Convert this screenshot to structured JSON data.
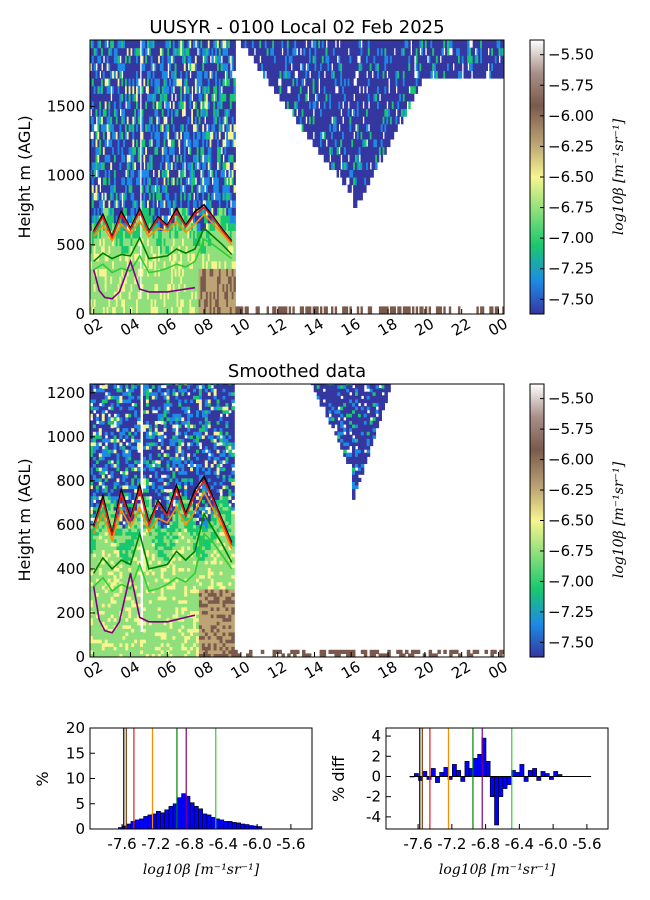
{
  "chart_data": [
    {
      "type": "heatmap",
      "title": "UUSYR - 0100 Local 02 Feb 2025",
      "ylabel": "Height m (AGL)",
      "ylim": [
        0,
        1980
      ],
      "yticks": [
        "0",
        "500",
        "1000",
        "1500"
      ],
      "yticks_values": [
        0,
        500,
        1000,
        1500
      ],
      "xticks": [
        "02",
        "04",
        "06",
        "08",
        "10",
        "12",
        "14",
        "16",
        "18",
        "20",
        "22",
        "00"
      ],
      "xlim_hours": [
        1.8,
        24.3
      ],
      "colorbar": {
        "label": "log10β [m⁻¹sr⁻¹]",
        "ticks": [
          "-5.50",
          "-5.75",
          "-6.00",
          "-6.25",
          "-6.50",
          "-6.75",
          "-7.00",
          "-7.25",
          "-7.50"
        ],
        "range": [
          -7.62,
          -5.38
        ],
        "colormap": [
          "#3537a0",
          "#1d8ae6",
          "#19c86e",
          "#8fe07c",
          "#f7f58f",
          "#bca474",
          "#7a5a4c",
          "#a89088",
          "#ffffff"
        ]
      },
      "layer_lines": [
        {
          "color": "#000000",
          "x": [
            2.0,
            2.5,
            3.0,
            3.5,
            4.0,
            4.5,
            5.0,
            5.5,
            6.0,
            6.5,
            7.0,
            7.5,
            8.0,
            8.5,
            9.0,
            9.5
          ],
          "y": [
            600,
            720,
            560,
            740,
            620,
            760,
            600,
            700,
            640,
            760,
            640,
            740,
            790,
            700,
            610,
            530
          ]
        },
        {
          "color": "#e41a1c",
          "x": [
            2.0,
            2.5,
            3.0,
            3.5,
            4.0,
            4.5,
            5.0,
            5.5,
            6.0,
            6.5,
            7.0,
            7.5,
            8.0,
            8.5,
            9.0,
            9.5
          ],
          "y": [
            590,
            700,
            550,
            720,
            610,
            740,
            590,
            690,
            630,
            740,
            630,
            720,
            770,
            690,
            600,
            520
          ]
        },
        {
          "color": "#ff8c00",
          "x": [
            2.0,
            2.5,
            3.0,
            3.5,
            4.0,
            4.5,
            5.0,
            5.5,
            6.0,
            6.5,
            7.0,
            7.5,
            8.0,
            8.5,
            9.0,
            9.5
          ],
          "y": [
            560,
            640,
            530,
            650,
            580,
            670,
            560,
            620,
            600,
            670,
            590,
            650,
            720,
            650,
            580,
            500
          ]
        },
        {
          "color": "#008000",
          "x": [
            2.0,
            2.5,
            3.0,
            3.5,
            4.0,
            4.5,
            5.0,
            5.5,
            6.0,
            6.5,
            7.0,
            7.5,
            8.0,
            8.5,
            9.0,
            9.5
          ],
          "y": [
            380,
            440,
            400,
            430,
            420,
            550,
            400,
            410,
            420,
            470,
            440,
            470,
            620,
            560,
            500,
            430
          ]
        },
        {
          "color": "#32cd32",
          "x": [
            2.0,
            2.5,
            3.0,
            3.5,
            4.0,
            4.5,
            5.0,
            5.5,
            6.0,
            6.5,
            7.0,
            7.5,
            8.0,
            8.5,
            9.0,
            9.5
          ],
          "y": [
            320,
            360,
            300,
            330,
            310,
            420,
            300,
            310,
            330,
            360,
            340,
            380,
            540,
            500,
            450,
            400
          ]
        },
        {
          "color": "#800080",
          "x": [
            2.0,
            2.3,
            2.6,
            3.0,
            3.4,
            4.0,
            4.5,
            5.0,
            5.5,
            6.0,
            6.5,
            7.0,
            7.5
          ],
          "y": [
            320,
            170,
            120,
            110,
            160,
            380,
            180,
            160,
            160,
            160,
            170,
            180,
            190
          ]
        }
      ]
    },
    {
      "type": "heatmap",
      "title": "Smoothed data",
      "ylabel": "Height m (AGL)",
      "ylim": [
        0,
        1240
      ],
      "yticks": [
        "0",
        "200",
        "400",
        "600",
        "800",
        "1000",
        "1200"
      ],
      "yticks_values": [
        0,
        200,
        400,
        600,
        800,
        1000,
        1200
      ],
      "xticks": [
        "02",
        "04",
        "06",
        "08",
        "10",
        "12",
        "14",
        "16",
        "18",
        "20",
        "22",
        "00"
      ],
      "xlim_hours": [
        1.8,
        24.3
      ],
      "colorbar": {
        "label": "log10β [m⁻¹sr⁻¹]",
        "ticks": [
          "-5.50",
          "-5.75",
          "-6.00",
          "-6.25",
          "-6.50",
          "-6.75",
          "-7.00",
          "-7.25",
          "-7.50"
        ],
        "range": [
          -7.62,
          -5.38
        ],
        "colormap": [
          "#3537a0",
          "#1d8ae6",
          "#19c86e",
          "#8fe07c",
          "#f7f58f",
          "#bca474",
          "#7a5a4c",
          "#a89088",
          "#ffffff"
        ]
      },
      "layer_lines": [
        {
          "color": "#000000",
          "x": [
            2.0,
            2.5,
            3.0,
            3.5,
            4.0,
            4.5,
            5.0,
            5.5,
            6.0,
            6.5,
            7.0,
            7.5,
            8.0,
            8.5,
            9.0,
            9.5
          ],
          "y": [
            600,
            730,
            560,
            760,
            630,
            780,
            610,
            710,
            650,
            780,
            650,
            760,
            820,
            720,
            620,
            520
          ]
        },
        {
          "color": "#e41a1c",
          "x": [
            2.0,
            2.5,
            3.0,
            3.5,
            4.0,
            4.5,
            5.0,
            5.5,
            6.0,
            6.5,
            7.0,
            7.5,
            8.0,
            8.5,
            9.0,
            9.5
          ],
          "y": [
            590,
            710,
            550,
            740,
            620,
            760,
            600,
            700,
            640,
            760,
            640,
            740,
            800,
            710,
            610,
            510
          ]
        },
        {
          "color": "#ff8c00",
          "x": [
            2.0,
            2.5,
            3.0,
            3.5,
            4.0,
            4.5,
            5.0,
            5.5,
            6.0,
            6.5,
            7.0,
            7.5,
            8.0,
            8.5,
            9.0,
            9.5
          ],
          "y": [
            560,
            650,
            530,
            670,
            590,
            680,
            570,
            630,
            610,
            680,
            600,
            660,
            750,
            670,
            590,
            490
          ]
        },
        {
          "color": "#008000",
          "x": [
            2.0,
            2.5,
            3.0,
            3.5,
            4.0,
            4.5,
            5.0,
            5.5,
            6.0,
            6.5,
            7.0,
            7.5,
            8.0,
            8.5,
            9.0,
            9.5
          ],
          "y": [
            380,
            450,
            400,
            440,
            420,
            560,
            400,
            410,
            420,
            480,
            440,
            480,
            650,
            580,
            510,
            430
          ]
        },
        {
          "color": "#32cd32",
          "x": [
            2.0,
            2.5,
            3.0,
            3.5,
            4.0,
            4.5,
            5.0,
            5.5,
            6.0,
            6.5,
            7.0,
            7.5,
            8.0,
            8.5,
            9.0,
            9.5
          ],
          "y": [
            320,
            360,
            300,
            330,
            310,
            420,
            300,
            310,
            330,
            360,
            340,
            380,
            560,
            520,
            460,
            400
          ]
        },
        {
          "color": "#800080",
          "x": [
            2.0,
            2.3,
            2.6,
            3.0,
            3.4,
            4.0,
            4.5,
            5.0,
            5.5,
            6.0,
            6.5,
            7.0,
            7.5
          ],
          "y": [
            320,
            170,
            120,
            110,
            160,
            380,
            180,
            160,
            160,
            160,
            170,
            180,
            190
          ]
        }
      ]
    },
    {
      "type": "bar",
      "ylabel": "%",
      "xlabel": "log10β [m⁻¹sr⁻¹]",
      "xlim": [
        -7.98,
        -5.35
      ],
      "ylim": [
        0,
        20
      ],
      "xticks": [
        "-7.6",
        "-7.2",
        "-6.8",
        "-6.4",
        "-6.0",
        "-5.6"
      ],
      "xticks_values": [
        -7.6,
        -7.2,
        -6.8,
        -6.4,
        -6.0,
        -5.6
      ],
      "yticks": [
        "0",
        "5",
        "10",
        "15",
        "20"
      ],
      "yticks_values": [
        0,
        5,
        10,
        15,
        20
      ],
      "bin_width": 0.05,
      "x": [
        -7.62,
        -7.57,
        -7.52,
        -7.47,
        -7.42,
        -7.37,
        -7.32,
        -7.27,
        -7.22,
        -7.17,
        -7.12,
        -7.07,
        -7.02,
        -6.97,
        -6.92,
        -6.87,
        -6.82,
        -6.77,
        -6.72,
        -6.67,
        -6.62,
        -6.57,
        -6.52,
        -6.47,
        -6.42,
        -6.37,
        -6.32,
        -6.27,
        -6.22,
        -6.17,
        -6.12,
        -6.07,
        -6.02,
        -5.97
      ],
      "values": [
        0.3,
        0.6,
        1.0,
        1.5,
        1.8,
        2.0,
        2.5,
        2.8,
        3.0,
        3.5,
        3.2,
        3.8,
        4.5,
        5.0,
        6.2,
        7.0,
        6.5,
        5.2,
        4.5,
        4.0,
        3.0,
        2.8,
        2.3,
        2.0,
        1.8,
        1.5,
        1.5,
        1.3,
        1.2,
        1.0,
        0.9,
        0.7,
        0.6,
        0.5
      ],
      "vlines": [
        {
          "color": "#000000",
          "x": -7.58
        },
        {
          "color": "#7b3f00",
          "x": -7.55
        },
        {
          "color": "#e41a1c",
          "x": -7.46
        },
        {
          "color": "#ff8c00",
          "x": -7.24
        },
        {
          "color": "#008000",
          "x": -6.95
        },
        {
          "color": "#800080",
          "x": -6.84
        },
        {
          "color": "#32cd32",
          "x": -6.49
        }
      ]
    },
    {
      "type": "bar",
      "ylabel": "% diff",
      "xlabel": "log10β [m⁻¹sr⁻¹]",
      "xlim": [
        -7.98,
        -5.35
      ],
      "ylim": [
        -5.2,
        4.8
      ],
      "xticks": [
        "-7.6",
        "-7.2",
        "-6.8",
        "-6.4",
        "-6.0",
        "-5.6"
      ],
      "xticks_values": [
        -7.6,
        -7.2,
        -6.8,
        -6.4,
        -6.0,
        -5.6
      ],
      "yticks": [
        "4",
        "2",
        "0",
        "-2",
        "-4"
      ],
      "yticks_values": [
        4,
        2,
        0,
        -2,
        -4
      ],
      "bin_width": 0.05,
      "x": [
        -7.67,
        -7.62,
        -7.57,
        -7.52,
        -7.47,
        -7.42,
        -7.37,
        -7.32,
        -7.27,
        -7.22,
        -7.17,
        -7.12,
        -7.07,
        -7.02,
        -6.97,
        -6.92,
        -6.87,
        -6.82,
        -6.77,
        -6.72,
        -6.67,
        -6.62,
        -6.57,
        -6.52,
        -6.47,
        -6.42,
        -6.37,
        -6.32,
        -6.27,
        -6.22,
        -6.17,
        -6.12,
        -6.07,
        -6.02,
        -5.97,
        -5.92
      ],
      "values": [
        0.0,
        0.3,
        -0.4,
        0.5,
        -0.3,
        0.8,
        -0.6,
        0.4,
        0.9,
        -0.3,
        1.2,
        0.6,
        -0.5,
        1.5,
        0.8,
        1.8,
        2.2,
        3.8,
        1.5,
        -2.0,
        -4.8,
        -2.0,
        -1.2,
        -0.8,
        0.6,
        0.4,
        1.2,
        -0.5,
        0.6,
        0.8,
        -0.4,
        0.5,
        0.3,
        -0.3,
        0.5,
        0.2
      ],
      "vlines": [
        {
          "color": "#000000",
          "x": -7.58
        },
        {
          "color": "#7b3f00",
          "x": -7.55
        },
        {
          "color": "#e41a1c",
          "x": -7.46
        },
        {
          "color": "#ff8c00",
          "x": -7.24
        },
        {
          "color": "#008000",
          "x": -6.95
        },
        {
          "color": "#800080",
          "x": -6.84
        },
        {
          "color": "#32cd32",
          "x": -6.49
        }
      ]
    }
  ]
}
